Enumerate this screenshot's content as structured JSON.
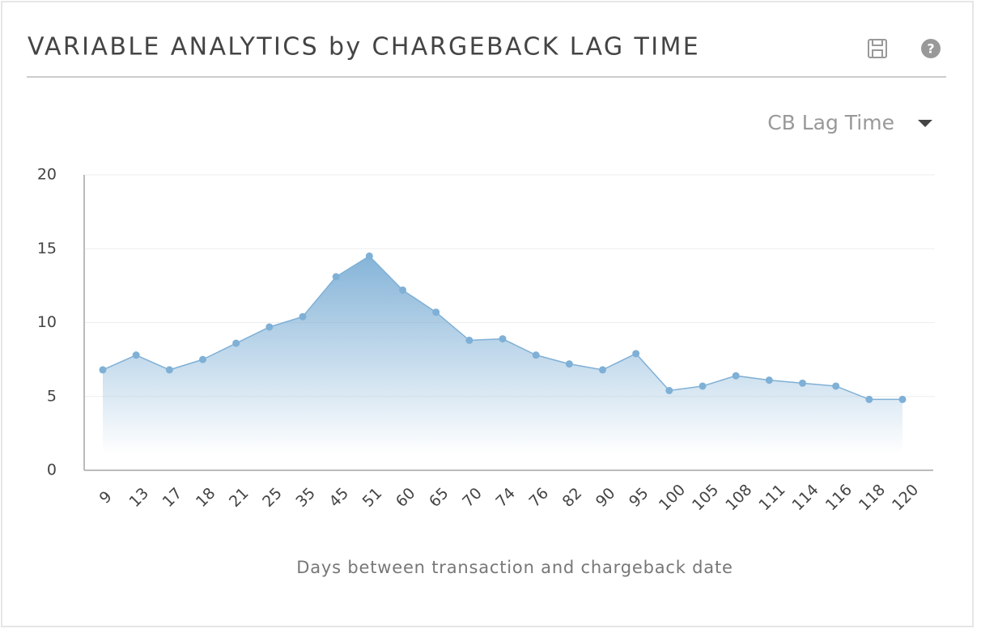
{
  "widget": {
    "title": "VARIABLE ANALYTICS by CHARGEBACK LAG TIME",
    "dropdown": "CB Lag Time"
  },
  "chart_data": {
    "type": "area",
    "xlabel": "Days between transaction and chargeback date",
    "categories": [
      "9",
      "13",
      "17",
      "18",
      "21",
      "25",
      "35",
      "45",
      "51",
      "60",
      "65",
      "70",
      "74",
      "76",
      "82",
      "90",
      "95",
      "100",
      "105",
      "108",
      "111",
      "114",
      "116",
      "118",
      "120"
    ],
    "values": [
      6.8,
      7.8,
      6.8,
      7.5,
      8.6,
      9.7,
      10.4,
      13.1,
      14.5,
      12.2,
      10.7,
      8.8,
      8.9,
      7.8,
      7.2,
      6.8,
      7.9,
      5.4,
      5.7,
      6.4,
      6.1,
      5.9,
      5.7,
      4.8,
      4.8
    ],
    "color": "#7fb0d6",
    "ylim": [
      0,
      20
    ],
    "yticks": [
      0,
      5,
      10,
      15,
      20
    ],
    "grid": true
  }
}
